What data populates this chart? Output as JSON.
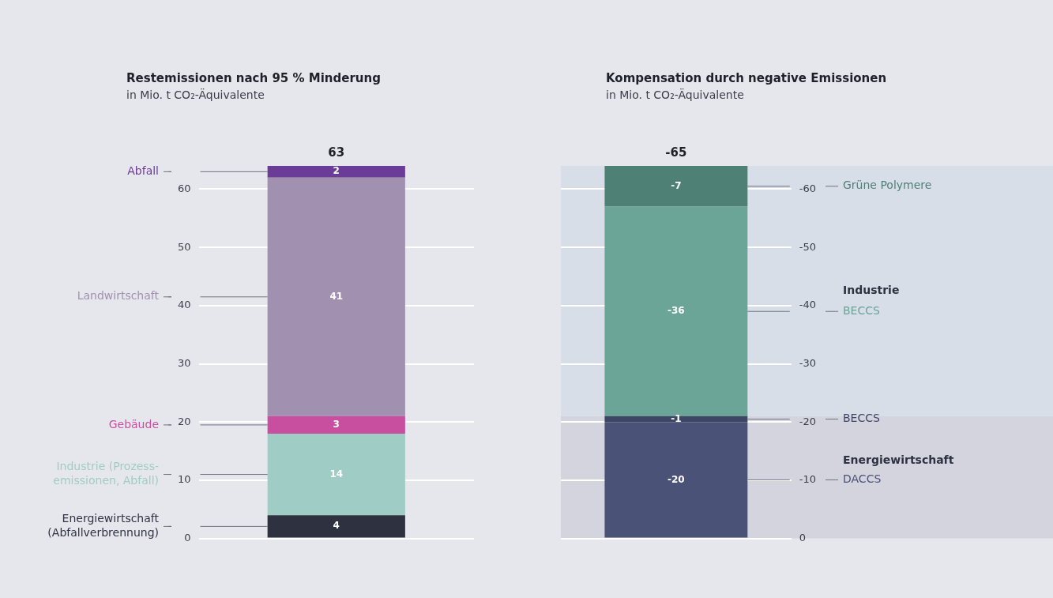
{
  "chart_data": [
    {
      "type": "bar",
      "title": "Restemissionen nach 95 % Minderung",
      "subtitle": "in Mio. t CO₂-Äquivalente",
      "categories": [
        null
      ],
      "stacked": true,
      "series": [
        {
          "name": "Energiewirtschaft (Abfallverbrennung)",
          "color": "#2e3140",
          "values": [
            4
          ]
        },
        {
          "name": "Industrie (Prozess-emissionen, Abfall)",
          "color": "#9fcdc6",
          "values": [
            14
          ]
        },
        {
          "name": "Gebäude",
          "color": "#c84fa0",
          "values": [
            3
          ]
        },
        {
          "name": "Landwirtschaft",
          "color": "#a190b0",
          "values": [
            41
          ]
        },
        {
          "name": "Abfall",
          "color": "#6b3b98",
          "values": [
            2
          ]
        }
      ],
      "ylim": [
        0,
        64
      ],
      "yticks": [
        0,
        10,
        20,
        30,
        40,
        50,
        60
      ],
      "grid": "y",
      "legend": false,
      "data_labels": true,
      "totals": [
        "63"
      ]
    },
    {
      "type": "bar",
      "title": "Kompensation durch negative Emissionen",
      "subtitle": "in Mio. t CO₂-Äquivalente",
      "categories": [
        null
      ],
      "stacked": true,
      "series": [
        {
          "name": "DACCS",
          "color": "#4a5278",
          "values": [
            -20
          ]
        },
        {
          "name": "BECCS",
          "color": "#3e4666",
          "values": [
            -1
          ]
        },
        {
          "name": "BECCS",
          "color": "#6aa597",
          "values": [
            -36
          ]
        },
        {
          "name": "Grüne Polymere",
          "color": "#4f8076",
          "values": [
            -7
          ]
        }
      ],
      "bands": [
        {
          "axis": "y",
          "from": 0,
          "to": -21,
          "label": "Energiewirtschaft",
          "color": "#d3d4de"
        },
        {
          "axis": "y",
          "from": -21,
          "to": -64,
          "label": "Industrie",
          "color": "#d7dee7"
        }
      ],
      "ylim": [
        0,
        -64
      ],
      "yticks": [
        0,
        -10,
        -20,
        -30,
        -40,
        -50,
        -60
      ],
      "grid": "y",
      "legend": false,
      "data_labels": true,
      "totals": [
        "-65"
      ]
    }
  ]
}
